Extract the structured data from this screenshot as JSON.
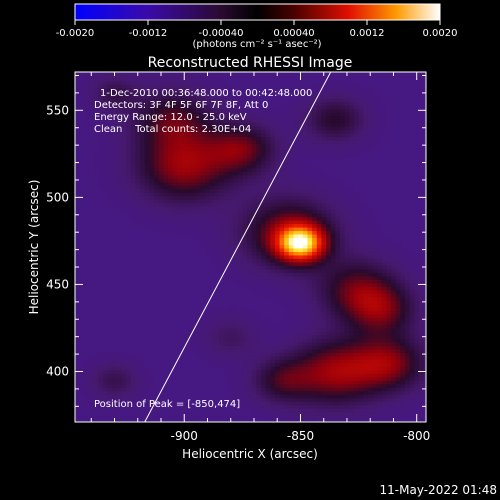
{
  "colorbar": {
    "ticks": [
      "-0.0020",
      "-0.0012",
      "-0.00040",
      "0.00040",
      "0.0012",
      "0.0020"
    ],
    "units": "(photons cm⁻² s⁻¹ asec⁻²)"
  },
  "chart_data": {
    "type": "heatmap",
    "title": "Reconstructed RHESSI Image",
    "xlabel": "Heliocentric X (arcsec)",
    "ylabel": "Heliocentric Y (arcsec)",
    "xlim": [
      -947,
      -796
    ],
    "ylim": [
      371,
      572
    ],
    "x_ticks": [
      -900,
      -850,
      -800
    ],
    "x_tick_labels": [
      "-900",
      "-850",
      "-800"
    ],
    "y_ticks": [
      400,
      450,
      500,
      550
    ],
    "y_tick_labels": [
      "400",
      "450",
      "500",
      "550"
    ],
    "value_range": [
      -0.002,
      0.002
    ],
    "colormap": "black-blue-purple-red-orange-yellow-white",
    "peak": {
      "x": -850,
      "y": 474
    },
    "annotations": [
      "1-Dec-2010 00:36:48.000 to 00:42:48.000",
      "Detectors: 3F 4F 5F 6F 7F 8F, Att 0",
      "Energy Range: 12.0 - 25.0 keV",
      "Clean    Total counts: 2.30E+04"
    ],
    "peak_label": "Position of Peak = [-850,474]",
    "limb_line": [
      {
        "x": -917,
        "y": 371
      },
      {
        "x": -837,
        "y": 572
      }
    ],
    "sources": [
      {
        "x": -850,
        "y": 474,
        "sigma": 7,
        "amp": 0.002
      },
      {
        "x": -855,
        "y": 480,
        "sigma": 14,
        "amp": 0.0009
      },
      {
        "x": -900,
        "y": 518,
        "sigma": 14,
        "amp": 0.001
      },
      {
        "x": -875,
        "y": 528,
        "sigma": 10,
        "amp": 0.0008
      },
      {
        "x": -905,
        "y": 545,
        "sigma": 12,
        "amp": 0.0007
      },
      {
        "x": -835,
        "y": 545,
        "sigma": 9,
        "amp": 0.0006
      },
      {
        "x": -825,
        "y": 447,
        "sigma": 12,
        "amp": 0.0008
      },
      {
        "x": -815,
        "y": 435,
        "sigma": 10,
        "amp": 0.0007
      },
      {
        "x": -835,
        "y": 400,
        "sigma": 13,
        "amp": 0.001
      },
      {
        "x": -812,
        "y": 405,
        "sigma": 11,
        "amp": 0.0009
      },
      {
        "x": -858,
        "y": 395,
        "sigma": 9,
        "amp": 0.0006
      },
      {
        "x": -930,
        "y": 395,
        "sigma": 7,
        "amp": 0.0004
      },
      {
        "x": -930,
        "y": 560,
        "sigma": 7,
        "amp": 0.0004
      },
      {
        "x": -880,
        "y": 420,
        "sigma": 8,
        "amp": 0.0003
      }
    ]
  },
  "footer": {
    "timestamp": "11-May-2022 01:48"
  }
}
